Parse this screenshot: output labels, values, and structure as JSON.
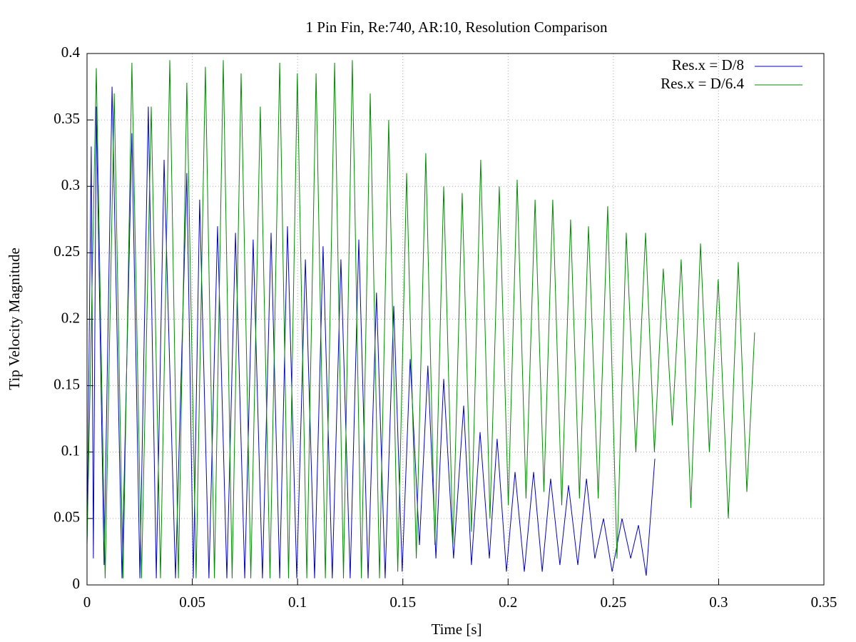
{
  "chart_data": {
    "type": "line",
    "title": "1 Pin Fin, Re:740, AR:10, Resolution Comparison",
    "xlabel": "Time [s]",
    "ylabel": "Tip Velocity Magnitude",
    "xlim": [
      0,
      0.35
    ],
    "ylim": [
      0,
      0.4
    ],
    "xticks": [
      0,
      0.05,
      0.1,
      0.15,
      0.2,
      0.25,
      0.3,
      0.35
    ],
    "yticks": [
      0,
      0.05,
      0.1,
      0.15,
      0.2,
      0.25,
      0.3,
      0.35,
      0.4
    ],
    "grid": true,
    "legend": "upper right",
    "series": [
      {
        "name": "Res.x = D/8",
        "color": "#0000c8",
        "x": [
          0,
          0.002,
          0.003,
          0.0044,
          0.0081,
          0.0119,
          0.0166,
          0.0213,
          0.0251,
          0.0291,
          0.0329,
          0.0366,
          0.042,
          0.0474,
          0.0505,
          0.0535,
          0.0579,
          0.062,
          0.0664,
          0.0705,
          0.0749,
          0.0789,
          0.0833,
          0.0874,
          0.0915,
          0.0952,
          0.0996,
          0.1037,
          0.1081,
          0.1121,
          0.1165,
          0.1206,
          0.125,
          0.1291,
          0.1335,
          0.1375,
          0.1416,
          0.1457,
          0.1497,
          0.1535,
          0.1579,
          0.1619,
          0.1657,
          0.1694,
          0.1741,
          0.1789,
          0.1826,
          0.1867,
          0.1911,
          0.1948,
          0.1992,
          0.2033,
          0.2077,
          0.2121,
          0.2162,
          0.2202,
          0.2246,
          0.2287,
          0.2331,
          0.2372,
          0.2412,
          0.2453,
          0.2494,
          0.2541,
          0.2582,
          0.2619,
          0.2656,
          0.2697
        ],
        "values": [
          0.03,
          0.33,
          0.02,
          0.36,
          0.015,
          0.375,
          0.005,
          0.34,
          0.005,
          0.36,
          0.005,
          0.32,
          0.005,
          0.31,
          0.005,
          0.29,
          0.005,
          0.27,
          0.005,
          0.265,
          0.005,
          0.26,
          0.005,
          0.265,
          0.005,
          0.27,
          0.005,
          0.245,
          0.005,
          0.255,
          0.005,
          0.245,
          0.005,
          0.26,
          0.005,
          0.22,
          0.005,
          0.21,
          0.01,
          0.17,
          0.03,
          0.165,
          0.02,
          0.155,
          0.02,
          0.135,
          0.015,
          0.115,
          0.02,
          0.11,
          0.01,
          0.085,
          0.01,
          0.085,
          0.01,
          0.08,
          0.015,
          0.075,
          0.015,
          0.08,
          0.02,
          0.05,
          0.01,
          0.05,
          0.02,
          0.045,
          0.007,
          0.095
        ]
      },
      {
        "name": "Res.x = D/6.4",
        "color": "#008c00",
        "x": [
          0,
          0.0044,
          0.0086,
          0.0129,
          0.0171,
          0.0213,
          0.0259,
          0.0305,
          0.0349,
          0.0393,
          0.0434,
          0.0474,
          0.0518,
          0.0562,
          0.0605,
          0.0647,
          0.0689,
          0.0732,
          0.0778,
          0.0823,
          0.0869,
          0.0915,
          0.0957,
          0.0999,
          0.1044,
          0.1088,
          0.1132,
          0.1176,
          0.1218,
          0.126,
          0.1303,
          0.1345,
          0.1389,
          0.1433,
          0.1476,
          0.1518,
          0.1564,
          0.1609,
          0.1652,
          0.1694,
          0.1738,
          0.1782,
          0.1826,
          0.187,
          0.1914,
          0.1958,
          0.2001,
          0.2043,
          0.2085,
          0.2128,
          0.217,
          0.2212,
          0.2255,
          0.2297,
          0.2339,
          0.2382,
          0.2428,
          0.2473,
          0.2517,
          0.2561,
          0.2607,
          0.2653,
          0.2695,
          0.2737,
          0.278,
          0.2822,
          0.2868,
          0.2914,
          0.2956,
          0.2998,
          0.3046,
          0.3093,
          0.3134,
          0.3171
        ],
        "values": [
          0.03,
          0.389,
          0.005,
          0.37,
          0.005,
          0.393,
          0.005,
          0.36,
          0.005,
          0.395,
          0.005,
          0.378,
          0.005,
          0.39,
          0.005,
          0.395,
          0.005,
          0.385,
          0.005,
          0.36,
          0.005,
          0.393,
          0.005,
          0.385,
          0.005,
          0.385,
          0.005,
          0.393,
          0.005,
          0.395,
          0.005,
          0.37,
          0.005,
          0.35,
          0.01,
          0.31,
          0.02,
          0.325,
          0.03,
          0.3,
          0.03,
          0.295,
          0.04,
          0.32,
          0.05,
          0.3,
          0.06,
          0.305,
          0.065,
          0.29,
          0.07,
          0.29,
          0.06,
          0.275,
          0.065,
          0.27,
          0.065,
          0.285,
          0.02,
          0.265,
          0.1,
          0.265,
          0.1,
          0.238,
          0.12,
          0.245,
          0.058,
          0.257,
          0.1,
          0.23,
          0.05,
          0.243,
          0.07,
          0.19
        ]
      }
    ]
  }
}
